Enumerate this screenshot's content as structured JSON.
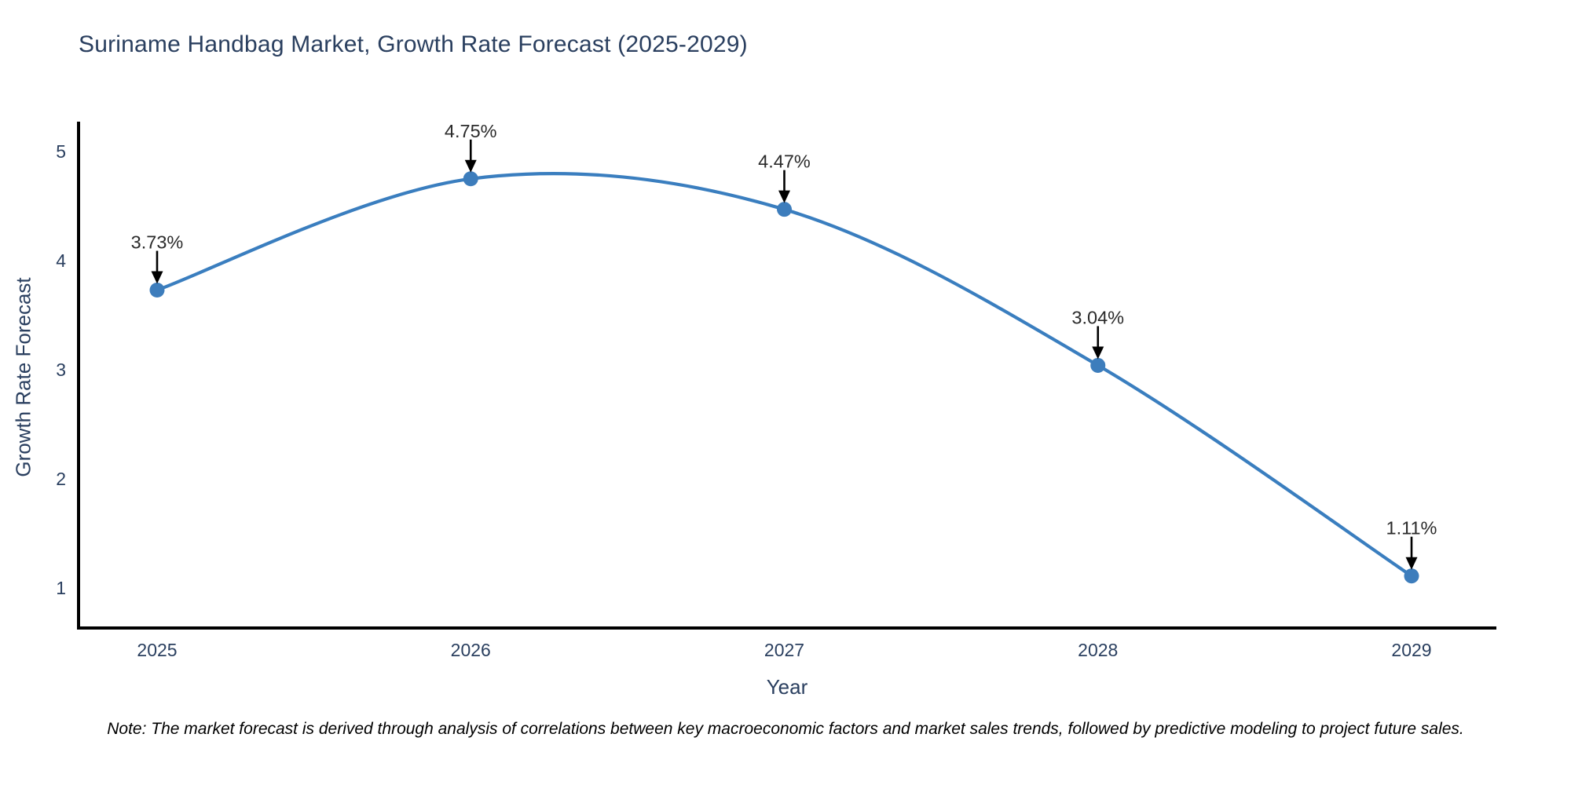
{
  "chart_data": {
    "type": "line",
    "title": "Suriname Handbag Market, Growth Rate Forecast (2025-2029)",
    "xlabel": "Year",
    "ylabel": "Growth Rate Forecast",
    "categories": [
      "2025",
      "2026",
      "2027",
      "2028",
      "2029"
    ],
    "series": [
      {
        "name": "Growth Rate Forecast",
        "values": [
          3.73,
          4.75,
          4.47,
          3.04,
          1.11
        ]
      }
    ],
    "point_labels": [
      "3.73%",
      "4.75%",
      "4.47%",
      "3.04%",
      "1.11%"
    ],
    "yticks": [
      1,
      2,
      3,
      4,
      5
    ],
    "ylim": [
      0.65,
      5.3
    ],
    "grid": false,
    "legend_position": "none",
    "line_shape": "spline",
    "line_color": "#3a7ebf",
    "marker_color": "#3d7dbc",
    "arrow_color": "#000000",
    "axis_color": "#000000",
    "tick_color": "#2a3f5f",
    "annotation_color": "#2a2a2a"
  },
  "note": "Note: The market forecast is derived through analysis of correlations between key macroeconomic factors and market sales trends, followed by predictive modeling to project future sales."
}
